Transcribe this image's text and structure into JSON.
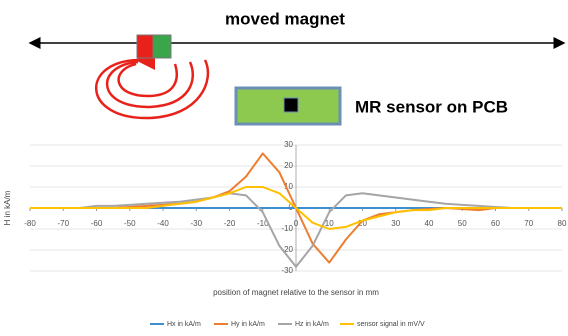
{
  "diagram": {
    "magnet_label": "moved magnet",
    "sensor_label": "MR sensor on PCB"
  },
  "chart_data": {
    "type": "line",
    "ylabel": "H in kA/m",
    "xlabel": "position of magnet relative to the sensor in mm",
    "x": [
      -80,
      -75,
      -70,
      -65,
      -60,
      -55,
      -50,
      -45,
      -40,
      -35,
      -30,
      -25,
      -20,
      -15,
      -10,
      -5,
      0,
      5,
      10,
      15,
      20,
      25,
      30,
      35,
      40,
      45,
      50,
      55,
      60,
      65,
      70,
      75,
      80
    ],
    "xlim": [
      -80,
      80
    ],
    "xticks": [
      -80,
      -70,
      -60,
      -50,
      -40,
      -30,
      -20,
      -10,
      0,
      10,
      20,
      30,
      40,
      50,
      60,
      70,
      80
    ],
    "ylim": [
      -30,
      30
    ],
    "yticks": [
      -30,
      -20,
      -10,
      0,
      10,
      20,
      30
    ],
    "grid": true,
    "series": [
      {
        "name": "Hx in kA/m",
        "color": "#3c8fd0",
        "values": [
          0,
          0,
          0,
          0,
          0,
          0,
          0,
          0,
          0,
          0,
          0,
          0,
          0,
          0,
          0,
          0,
          0,
          0,
          0,
          0,
          0,
          0,
          0,
          0,
          0,
          0,
          0,
          0,
          0,
          0,
          0,
          0,
          0
        ]
      },
      {
        "name": "Hy in kA/m",
        "color": "#ed7d31",
        "values": [
          0,
          0,
          0,
          0,
          0,
          0,
          0.5,
          1,
          1.5,
          2,
          3,
          5,
          8,
          15,
          26,
          17,
          0,
          -17,
          -26,
          -15,
          -6,
          -3,
          -2,
          -1,
          -0.5,
          0,
          -0.5,
          -1,
          0,
          0,
          0,
          0,
          0
        ]
      },
      {
        "name": "Hz in kA/m",
        "color": "#a5a5a5",
        "values": [
          0,
          0,
          0,
          0,
          1,
          1,
          1.5,
          2,
          2.5,
          3,
          4,
          5,
          7,
          6,
          -2,
          -18,
          -28,
          -18,
          -2,
          6,
          7,
          6,
          5,
          4,
          3,
          2,
          1.5,
          1,
          0.5,
          0,
          0,
          0,
          0
        ]
      },
      {
        "name": "sensor signal in mV/V",
        "color": "#ffc000",
        "values": [
          0,
          0,
          0,
          0,
          0,
          0,
          0,
          0,
          1,
          2,
          3,
          5,
          7,
          10,
          10,
          7,
          0,
          -7,
          -10,
          -9,
          -6,
          -4,
          -2,
          -1,
          -1,
          0,
          0,
          0,
          0,
          0,
          0,
          0,
          0
        ]
      }
    ]
  }
}
